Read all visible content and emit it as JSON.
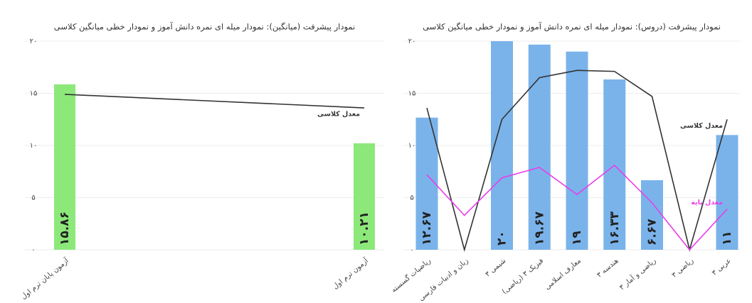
{
  "chart_data": [
    {
      "type": "bar",
      "title": "نمودار پیشرفت (میانگین): نمودار میله ای نمره دانش آموز و نمودار خطی میانگین کلاسی",
      "categories": [
        "آزمون پایان ترم اول",
        "آزمون ترم اول"
      ],
      "values": [
        15.86,
        10.21
      ],
      "value_labels": [
        "۱۵.۸۶",
        "۱۰.۲۱"
      ],
      "color": "#8de87a",
      "series": [
        {
          "name": "معدل کلاسی",
          "color": "#333333",
          "values": [
            14.9,
            13.6
          ]
        }
      ],
      "ylim": [
        0,
        20
      ],
      "yticks": [
        {
          "value": 0,
          "label": "۰"
        },
        {
          "value": 5,
          "label": "۵"
        },
        {
          "value": 10,
          "label": "۱۰"
        },
        {
          "value": 15,
          "label": "۱۵"
        },
        {
          "value": 20,
          "label": "۲۰"
        }
      ],
      "grid": true
    },
    {
      "type": "bar",
      "title": "نمودار پیشرفت (دروس): نمودار میله ای نمره دانش آموز و نمودار خطی میانگین کلاسی",
      "categories": [
        "ریاضیات گسسته",
        "زبان و ادبیات فارسی",
        "شیمی ۳",
        "فیزیک ۳ (ریاضی)",
        "معارف اسلامی",
        "هندسه ۳",
        "ریاضی و آمار ۳",
        "ریاضی ۳",
        "عربی ۳"
      ],
      "values": [
        12.67,
        null,
        20,
        19.67,
        19,
        16.33,
        6.67,
        null,
        11
      ],
      "value_labels": [
        "۱۲.۶۷",
        null,
        "۲۰",
        "۱۹.۶۷",
        "۱۹",
        "۱۶.۳۳",
        "۶.۶۷",
        null,
        "۱۱"
      ],
      "color": "#7ab3ea",
      "series": [
        {
          "name": "معدل کلاسی",
          "color": "#333333",
          "values": [
            13.6,
            0,
            12.5,
            16.5,
            17.2,
            17.1,
            14.7,
            0,
            12.5
          ]
        },
        {
          "name": "معدل پایه",
          "color": "#e83ee8",
          "values": [
            7.2,
            3.3,
            6.9,
            7.9,
            5.3,
            8.1,
            4.5,
            0,
            3.9
          ]
        }
      ],
      "ylim": [
        0,
        20
      ],
      "yticks": [
        {
          "value": 0,
          "label": "۰"
        },
        {
          "value": 5,
          "label": "۵"
        },
        {
          "value": 10,
          "label": "۱۰"
        },
        {
          "value": 15,
          "label": "۱۵"
        },
        {
          "value": 20,
          "label": "۲۰"
        }
      ],
      "grid": true
    }
  ]
}
